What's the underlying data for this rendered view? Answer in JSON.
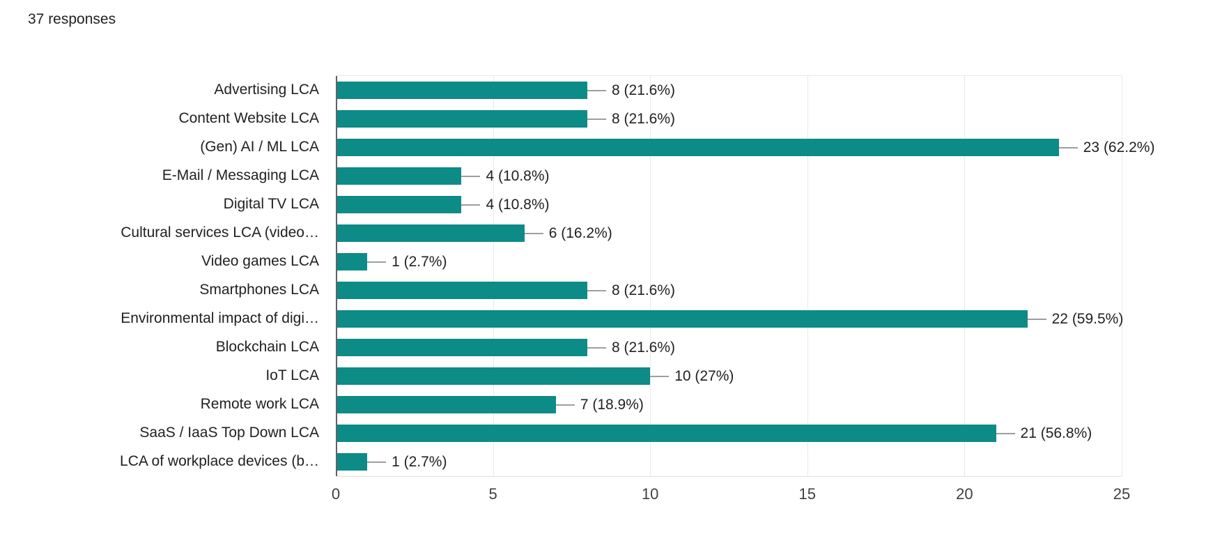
{
  "header": {
    "responses_text": "37 responses"
  },
  "chart_data": {
    "type": "bar",
    "orientation": "horizontal",
    "title": "",
    "xlabel": "",
    "ylabel": "",
    "categories": [
      "Advertising LCA",
      "Content Website LCA",
      "(Gen) AI / ML LCA",
      "E-Mail / Messaging LCA",
      "Digital TV LCA",
      "Cultural services LCA (video…",
      "Video games LCA",
      "Smartphones LCA",
      "Environmental impact of digi…",
      "Blockchain LCA",
      "IoT LCA",
      "Remote work LCA",
      "SaaS / IaaS Top Down LCA",
      "LCA of workplace devices (b…"
    ],
    "values": [
      8,
      8,
      23,
      4,
      4,
      6,
      1,
      8,
      22,
      8,
      10,
      7,
      21,
      1
    ],
    "value_labels": [
      "8 (21.6%)",
      "8 (21.6%)",
      "23 (62.2%)",
      "4 (10.8%)",
      "4 (10.8%)",
      "6 (16.2%)",
      "1 (2.7%)",
      "8 (21.6%)",
      "22 (59.5%)",
      "8 (21.6%)",
      "10 (27%)",
      "7 (18.9%)",
      "21 (56.8%)",
      "1 (2.7%)"
    ],
    "percentages": [
      21.6,
      21.6,
      62.2,
      10.8,
      10.8,
      16.2,
      2.7,
      21.6,
      59.5,
      21.6,
      27,
      18.9,
      56.8,
      2.7
    ],
    "total_responses": 37,
    "xlim": [
      0,
      25
    ],
    "x_ticks": [
      "0",
      "5",
      "10",
      "15",
      "20",
      "25"
    ],
    "grid": true,
    "legend_position": "none",
    "bar_color": "#0d8b86",
    "callout_color": "#9e9e9e",
    "axis_color": "#5f6368"
  }
}
